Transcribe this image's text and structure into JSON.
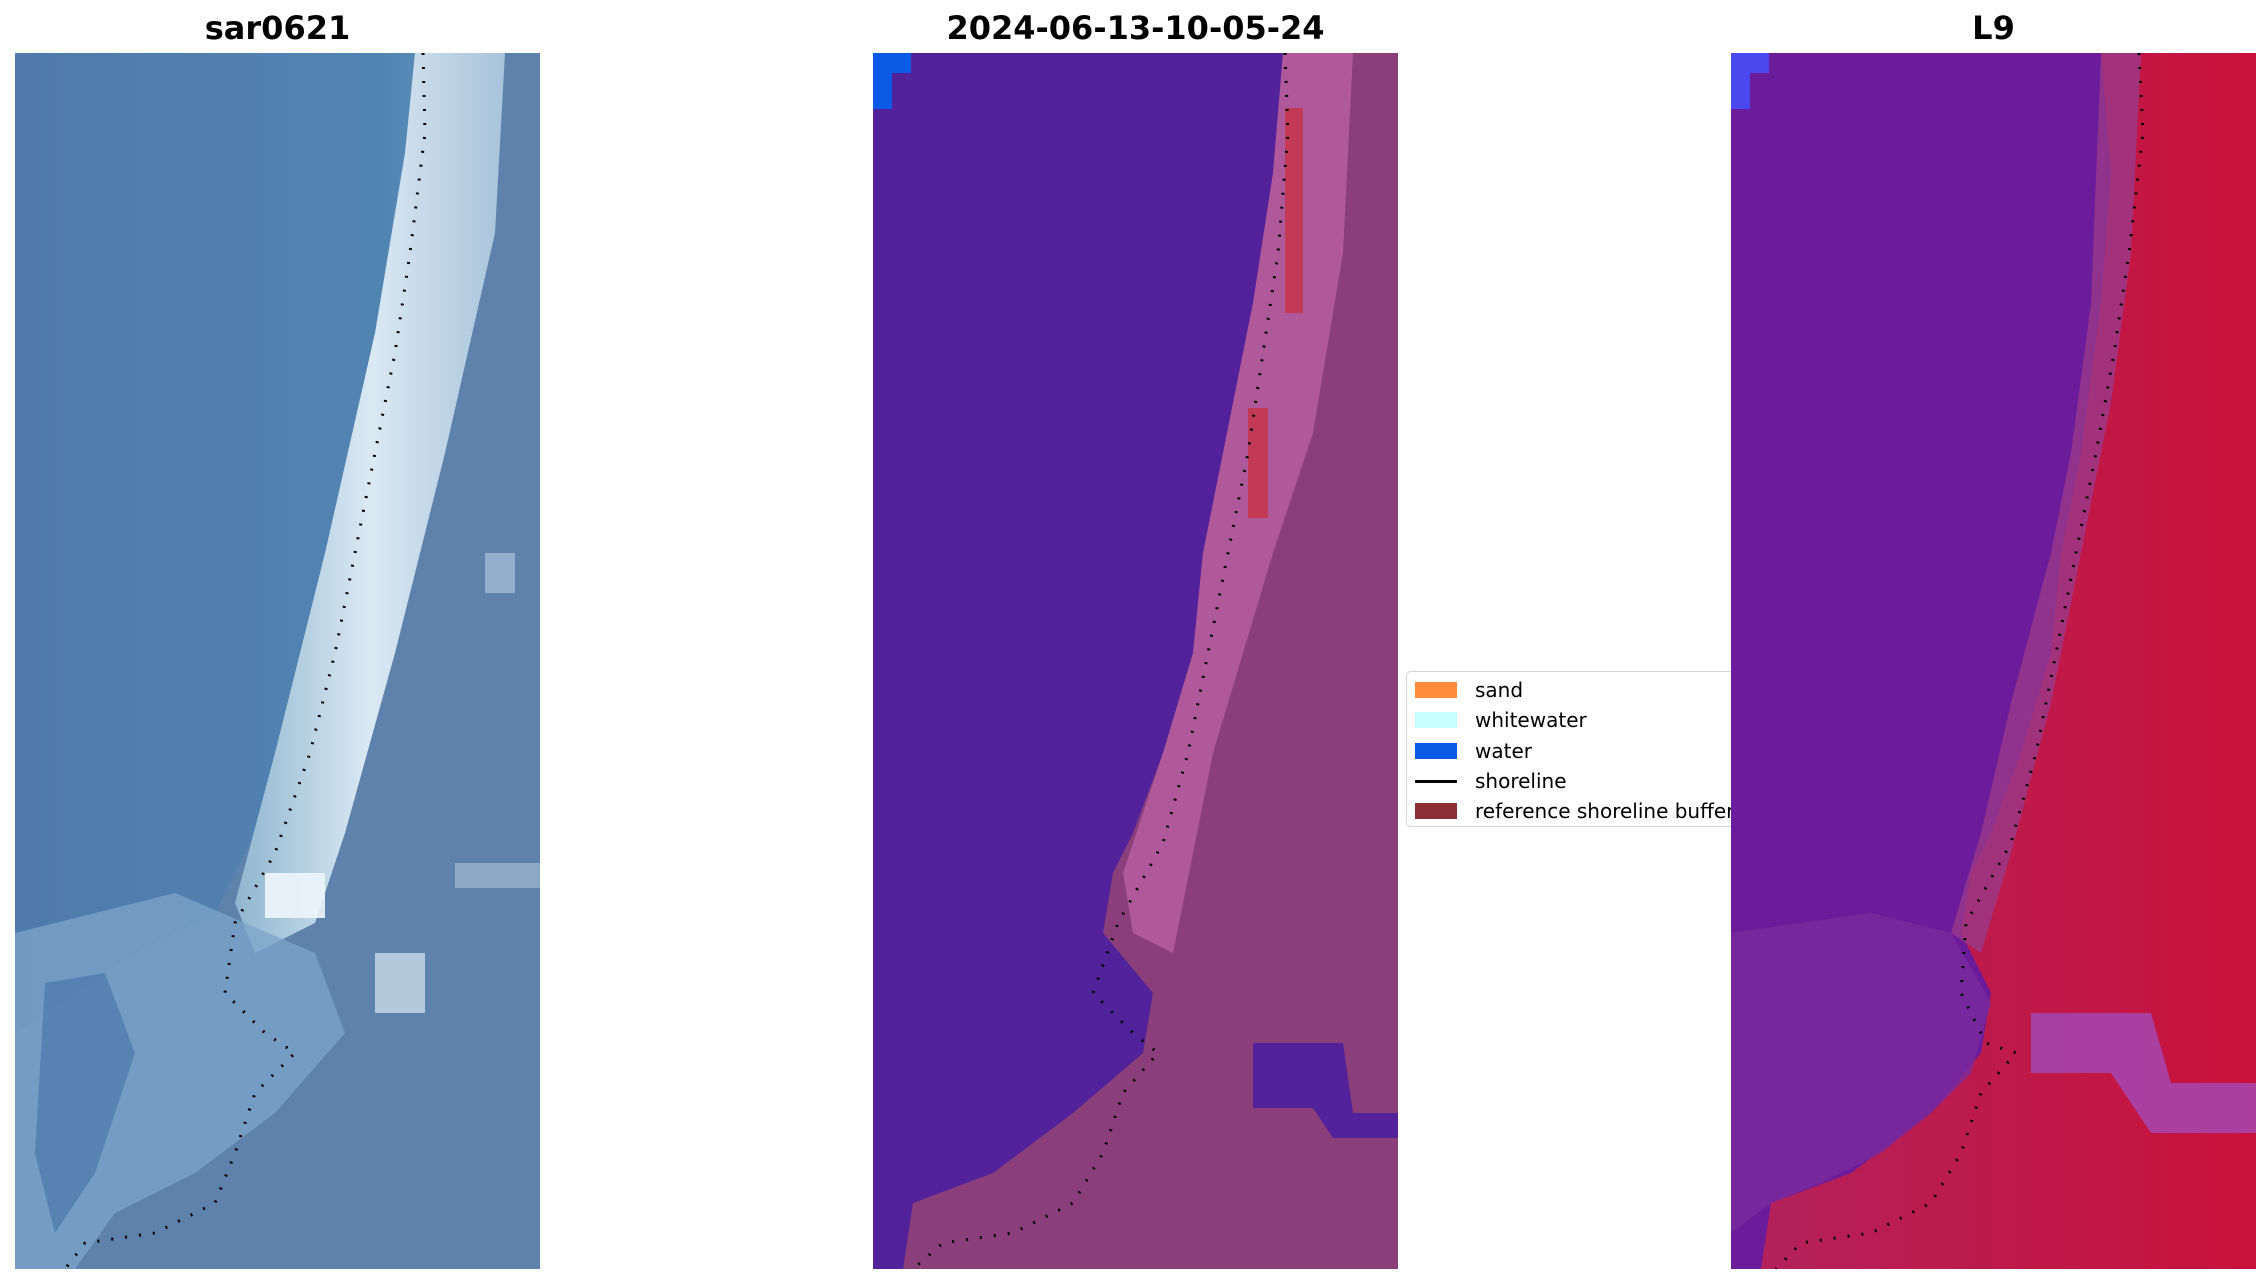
{
  "panels": [
    {
      "title": "sar0621"
    },
    {
      "title": "2024-06-13-10-05-24"
    },
    {
      "title": "L9"
    }
  ],
  "legend": {
    "items": [
      {
        "label": "sand",
        "color": "#ff8c3a",
        "kind": "patch"
      },
      {
        "label": "whitewater",
        "color": "#c8ffff",
        "kind": "patch"
      },
      {
        "label": "water",
        "color": "#0a5ae6",
        "kind": "patch"
      },
      {
        "label": "shoreline",
        "color": "#000000",
        "kind": "line"
      },
      {
        "label": "reference shoreline buffer",
        "color": "#8c3036",
        "kind": "patch"
      }
    ]
  },
  "colors": {
    "rgb_water": "#4e7fb0",
    "rgb_surf": "#d8e8f2",
    "rgb_land": "#5f82aa",
    "class_water": "#51229a",
    "class_land": "#8a3f7a",
    "class_sand": "#b55ea0",
    "class_buffer_red": "#c23a56",
    "class_water_corner": "#0a5ae6",
    "fc_water": "#6a1c9a",
    "fc_land": "#c2133f",
    "fc_corner": "#4b48f0"
  }
}
